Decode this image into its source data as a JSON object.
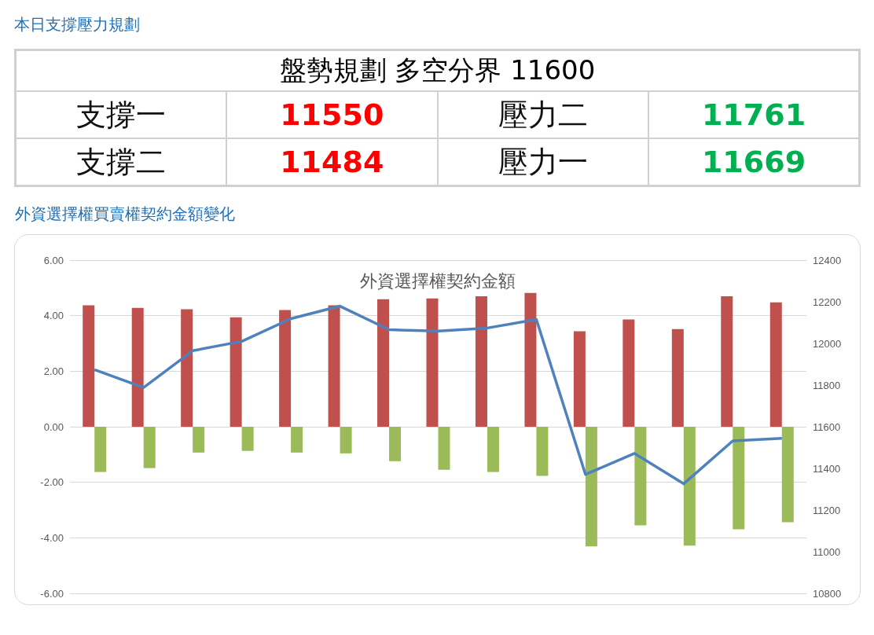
{
  "chart_data": [
    {
      "type": "other",
      "title": "本日支撐壓力規劃",
      "annotations": [
        "盤勢規劃 多空分界 11600",
        "支撐一",
        "11550",
        "壓力二",
        "11761",
        "支撐二",
        "11484",
        "壓力一",
        "11669"
      ]
    },
    {
      "type": "bar",
      "title": "外資選擇權契約金額",
      "subtitle": "外資選擇權買賣權契約金額變化",
      "categories": [
        null,
        null,
        null,
        null,
        null,
        null,
        null,
        null,
        null,
        null,
        null,
        null,
        null,
        null,
        null
      ],
      "series": [
        {
          "type": "bar",
          "color": "#c0504d",
          "values": [
            4.37,
            4.28,
            4.23,
            3.94,
            4.2,
            4.37,
            4.59,
            4.62,
            4.7,
            4.82,
            3.44,
            3.86,
            3.52,
            4.7,
            4.48
          ]
        },
        {
          "type": "bar",
          "color": "#9bbb59",
          "values": [
            -1.63,
            -1.49,
            -0.93,
            -0.87,
            -0.93,
            -0.96,
            -1.24,
            -1.55,
            -1.63,
            -1.77,
            -4.31,
            -3.55,
            -4.28,
            -3.69,
            -3.44
          ]
        },
        {
          "type": "line",
          "axis": "y2",
          "color": "#4f81bd",
          "values": [
            11874,
            11788,
            11965,
            12010,
            12119,
            12179,
            12066,
            12059,
            12074,
            12115,
            11371,
            11472,
            11326,
            11532,
            11544
          ]
        }
      ],
      "ylim": [
        -6,
        6
      ],
      "yticks": [
        {
          "value": -6,
          "label": "-6.00"
        },
        {
          "value": -4,
          "label": "-4.00"
        },
        {
          "value": -2,
          "label": "-2.00"
        },
        {
          "value": 0,
          "label": "0.00"
        },
        {
          "value": 2,
          "label": "2.00"
        },
        {
          "value": 4,
          "label": "4.00"
        },
        {
          "value": 6,
          "label": "6.00"
        }
      ],
      "y2lim": [
        10800,
        12400
      ],
      "y2ticks": [
        10800,
        11000,
        11200,
        11400,
        11600,
        11800,
        12000,
        12200,
        12400
      ],
      "grid": "y",
      "marker": "none",
      "line_style": "solid",
      "tick_labels": "y"
    }
  ]
}
